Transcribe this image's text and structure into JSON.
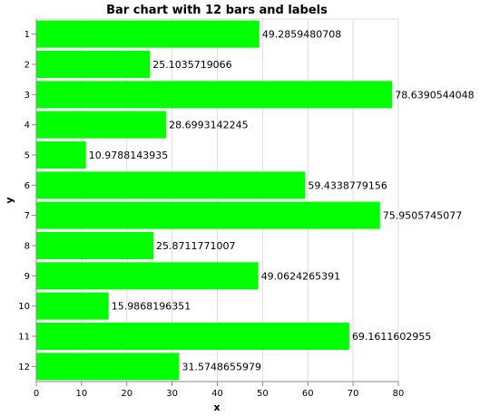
{
  "chart_data": {
    "type": "bar",
    "orientation": "horizontal",
    "title": "Bar chart with 12 bars and labels",
    "xlabel": "x",
    "ylabel": "y",
    "xlim": [
      0,
      80
    ],
    "x_ticks": [
      "0",
      "10",
      "20",
      "30",
      "40",
      "50",
      "60",
      "70",
      "80"
    ],
    "categories": [
      "1",
      "2",
      "3",
      "4",
      "5",
      "6",
      "7",
      "8",
      "9",
      "10",
      "11",
      "12"
    ],
    "values": [
      49.2859480708,
      25.1035719066,
      78.6390544048,
      28.6993142245,
      10.9788143935,
      59.4338779156,
      75.9505745077,
      25.8711771007,
      49.0624265391,
      15.9868196351,
      69.1611602955,
      31.5748655979
    ],
    "labels": [
      "49.2859480708",
      "25.1035719066",
      "78.6390544048",
      "28.6993142245",
      "10.9788143935",
      "59.4338779156",
      "75.9505745077",
      "25.8711771007",
      "49.0624265391",
      "15.9868196351",
      "69.1611602955",
      "31.5748655979"
    ],
    "bar_color": "#00ff00",
    "grid": true
  }
}
